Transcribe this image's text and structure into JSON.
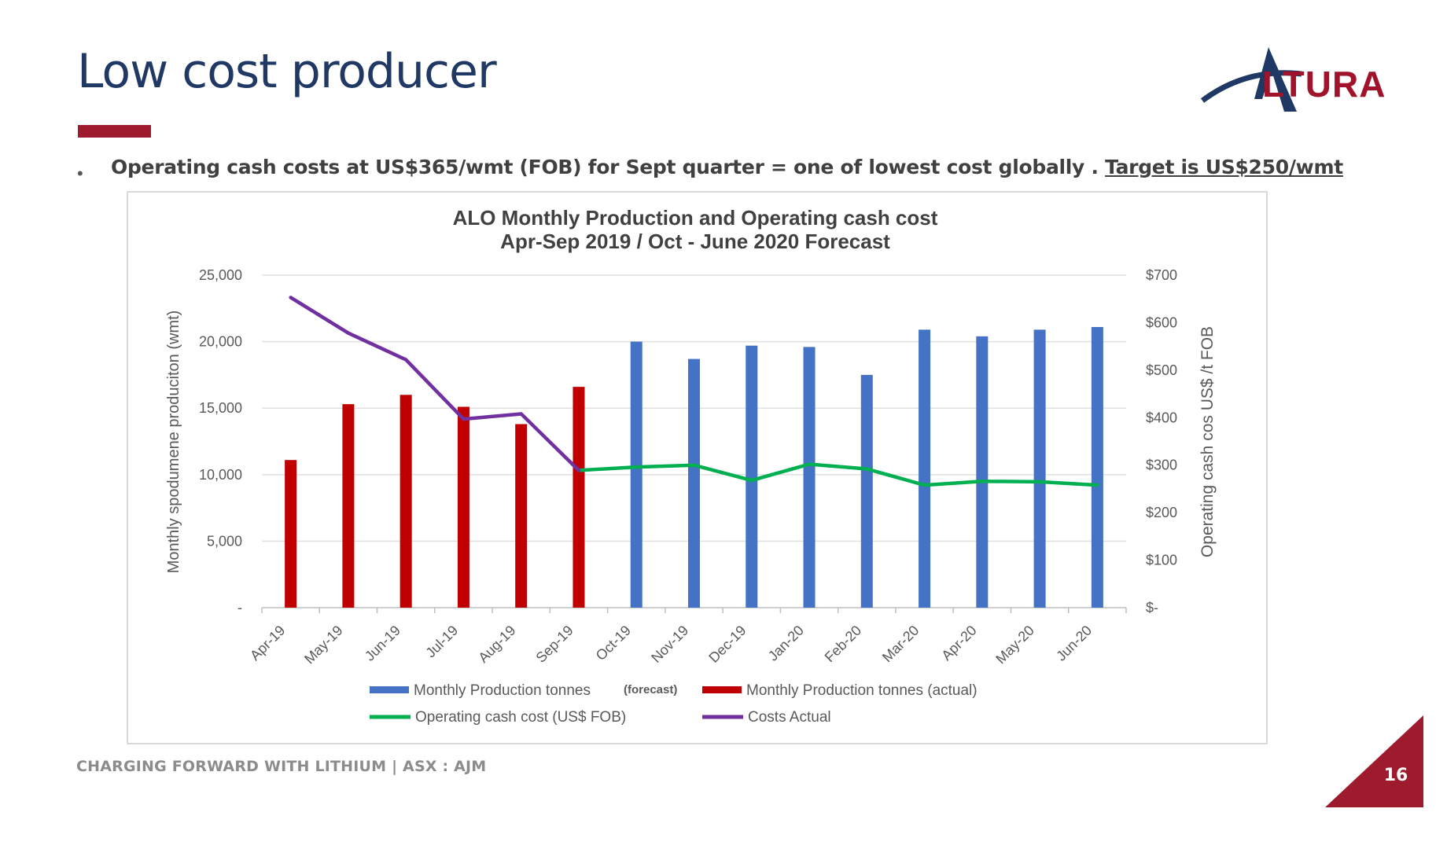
{
  "slide": {
    "title": "Low cost producer",
    "logo_text": "LTURA",
    "bullet_main": "Operating cash costs at US$365/wmt (FOB) for Sept quarter = one of lowest cost globally . ",
    "bullet_target": "Target is US$250/wmt",
    "footer": "CHARGING FORWARD WITH LITHIUM | ASX : AJM",
    "page_number": "16",
    "colors": {
      "title": "#1f3864",
      "accent": "#9e1b2d",
      "forecast_bar": "#4472c4",
      "actual_bar": "#c00000",
      "cost_forecast_line": "#00b050",
      "cost_actual_line": "#7030a0"
    }
  },
  "chart_data": {
    "type": "bar",
    "title_line1": "ALO Monthly Production and Operating cash cost",
    "title_line2": "Apr-Sep 2019 / Oct - June 2020 Forecast",
    "categories": [
      "Apr-19",
      "May-19",
      "Jun-19",
      "Jul-19",
      "Aug-19",
      "Sep-19",
      "Oct-19",
      "Nov-19",
      "Dec-19",
      "Jan-20",
      "Feb-20",
      "Mar-20",
      "Apr-20",
      "May-20",
      "Jun-20"
    ],
    "ylabel_left": "Monthly spodumene produciton (wmt)",
    "ylabel_right": "Operating cash cos US$ /t FOB",
    "ylim_left": [
      0,
      25000
    ],
    "ylim_right": [
      0,
      700
    ],
    "yticks_left": [
      "-",
      "5,000",
      "10,000",
      "15,000",
      "20,000",
      "25,000"
    ],
    "yticks_right": [
      "$-",
      "$100",
      "$200",
      "$300",
      "$400",
      "$500",
      "$600",
      "$700"
    ],
    "grid": true,
    "legend_position": "bottom",
    "series": [
      {
        "name": "Monthly Production tonnes",
        "name_note": "(forecast)",
        "kind": "bar",
        "values": [
          null,
          null,
          null,
          null,
          null,
          null,
          20000,
          18700,
          19700,
          19600,
          17500,
          20900,
          20400,
          20900,
          21100
        ]
      },
      {
        "name": "Monthly Production tonnes (actual)",
        "kind": "bar",
        "values": [
          11100,
          15300,
          16000,
          15100,
          13800,
          16600,
          null,
          null,
          null,
          null,
          null,
          null,
          null,
          null,
          null
        ]
      },
      {
        "name": "Operating cash cost (US$ FOB)",
        "kind": "line",
        "axis": "right",
        "values": [
          null,
          null,
          null,
          null,
          null,
          289,
          296,
          300,
          268,
          302,
          292,
          258,
          266,
          265,
          258
        ]
      },
      {
        "name": "Costs Actual",
        "kind": "line",
        "axis": "right",
        "values": [
          653,
          578,
          522,
          397,
          408,
          289,
          null,
          null,
          null,
          null,
          null,
          null,
          null,
          null,
          null
        ]
      }
    ]
  }
}
